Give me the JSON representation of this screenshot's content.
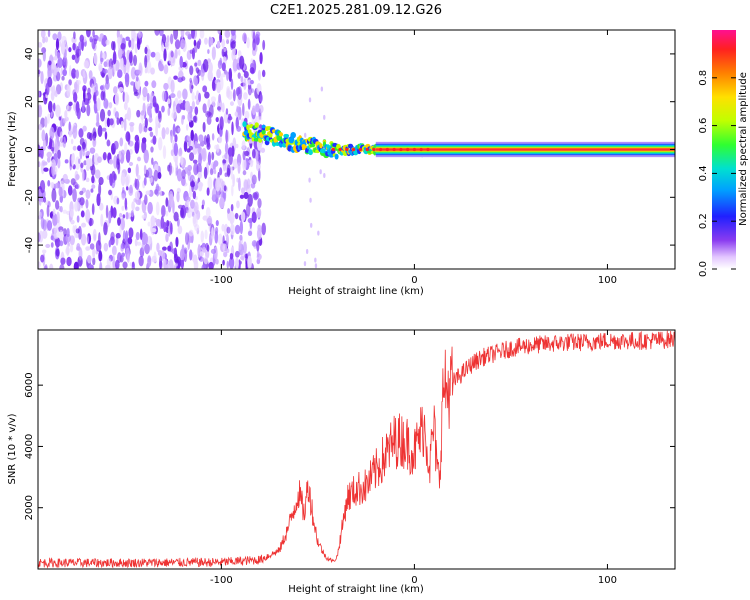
{
  "title": "C2E1.2025.281.09.12.G26",
  "chart_data": [
    {
      "type": "heatmap",
      "name": "spectrogram",
      "xlabel": "Height of straight line (km)",
      "ylabel": "Frequency (Hz)",
      "xlim": [
        -195,
        135
      ],
      "ylim": [
        -50,
        50
      ],
      "xticks": [
        -100,
        0,
        100
      ],
      "yticks": [
        -40,
        -20,
        0,
        20,
        40
      ],
      "colorbar": {
        "label": "Normalized spectral amplitude",
        "range": [
          0,
          1
        ],
        "ticks": [
          0.0,
          0.2,
          0.4,
          0.6,
          0.8
        ],
        "tick_labels": [
          "0.0",
          "0.2",
          "0.4",
          "0.6",
          "0.8"
        ]
      },
      "regions": {
        "noise_x_range": [
          -195,
          -78
        ],
        "signal_track": [
          {
            "x": -88,
            "y": 7.5
          },
          {
            "x": -80,
            "y": 7
          },
          {
            "x": -72,
            "y": 5
          },
          {
            "x": -65,
            "y": 3.5
          },
          {
            "x": -58,
            "y": 2
          },
          {
            "x": -50,
            "y": 0.5
          },
          {
            "x": -42,
            "y": 0
          },
          {
            "x": -30,
            "y": 0
          },
          {
            "x": -20,
            "y": 0
          },
          {
            "x": 0,
            "y": 0
          },
          {
            "x": 135,
            "y": 0
          }
        ]
      }
    },
    {
      "type": "line",
      "name": "snr",
      "xlabel": "Height of straight line (km)",
      "ylabel": "SNR (10 * v/v)",
      "xlim": [
        -195,
        135
      ],
      "ylim": [
        0,
        7800
      ],
      "xticks": [
        -100,
        0,
        100
      ],
      "yticks": [
        2000,
        4000,
        6000
      ],
      "series": [
        {
          "name": "SNR",
          "color": "#ee3333",
          "x": [
            -195,
            -150,
            -100,
            -80,
            -70,
            -65,
            -60,
            -57,
            -55,
            -52,
            -50,
            -47,
            -45,
            -42,
            -40,
            -37,
            -35,
            -30,
            -25,
            -20,
            -15,
            -10,
            -5,
            0,
            3,
            5,
            8,
            10,
            12,
            13,
            15,
            17,
            20,
            25,
            30,
            35,
            40,
            50,
            60,
            70,
            80,
            90,
            100,
            110,
            120,
            135
          ],
          "values": [
            200,
            200,
            220,
            300,
            600,
            1400,
            2500,
            1800,
            2800,
            1500,
            900,
            500,
            350,
            250,
            400,
            1500,
            2300,
            2600,
            2700,
            3200,
            3700,
            4200,
            4200,
            3800,
            4400,
            4700,
            3400,
            4700,
            3100,
            3000,
            6000,
            5800,
            6100,
            6400,
            6700,
            6900,
            7000,
            7200,
            7300,
            7350,
            7400,
            7400,
            7450,
            7450,
            7450,
            7500
          ]
        }
      ]
    }
  ]
}
